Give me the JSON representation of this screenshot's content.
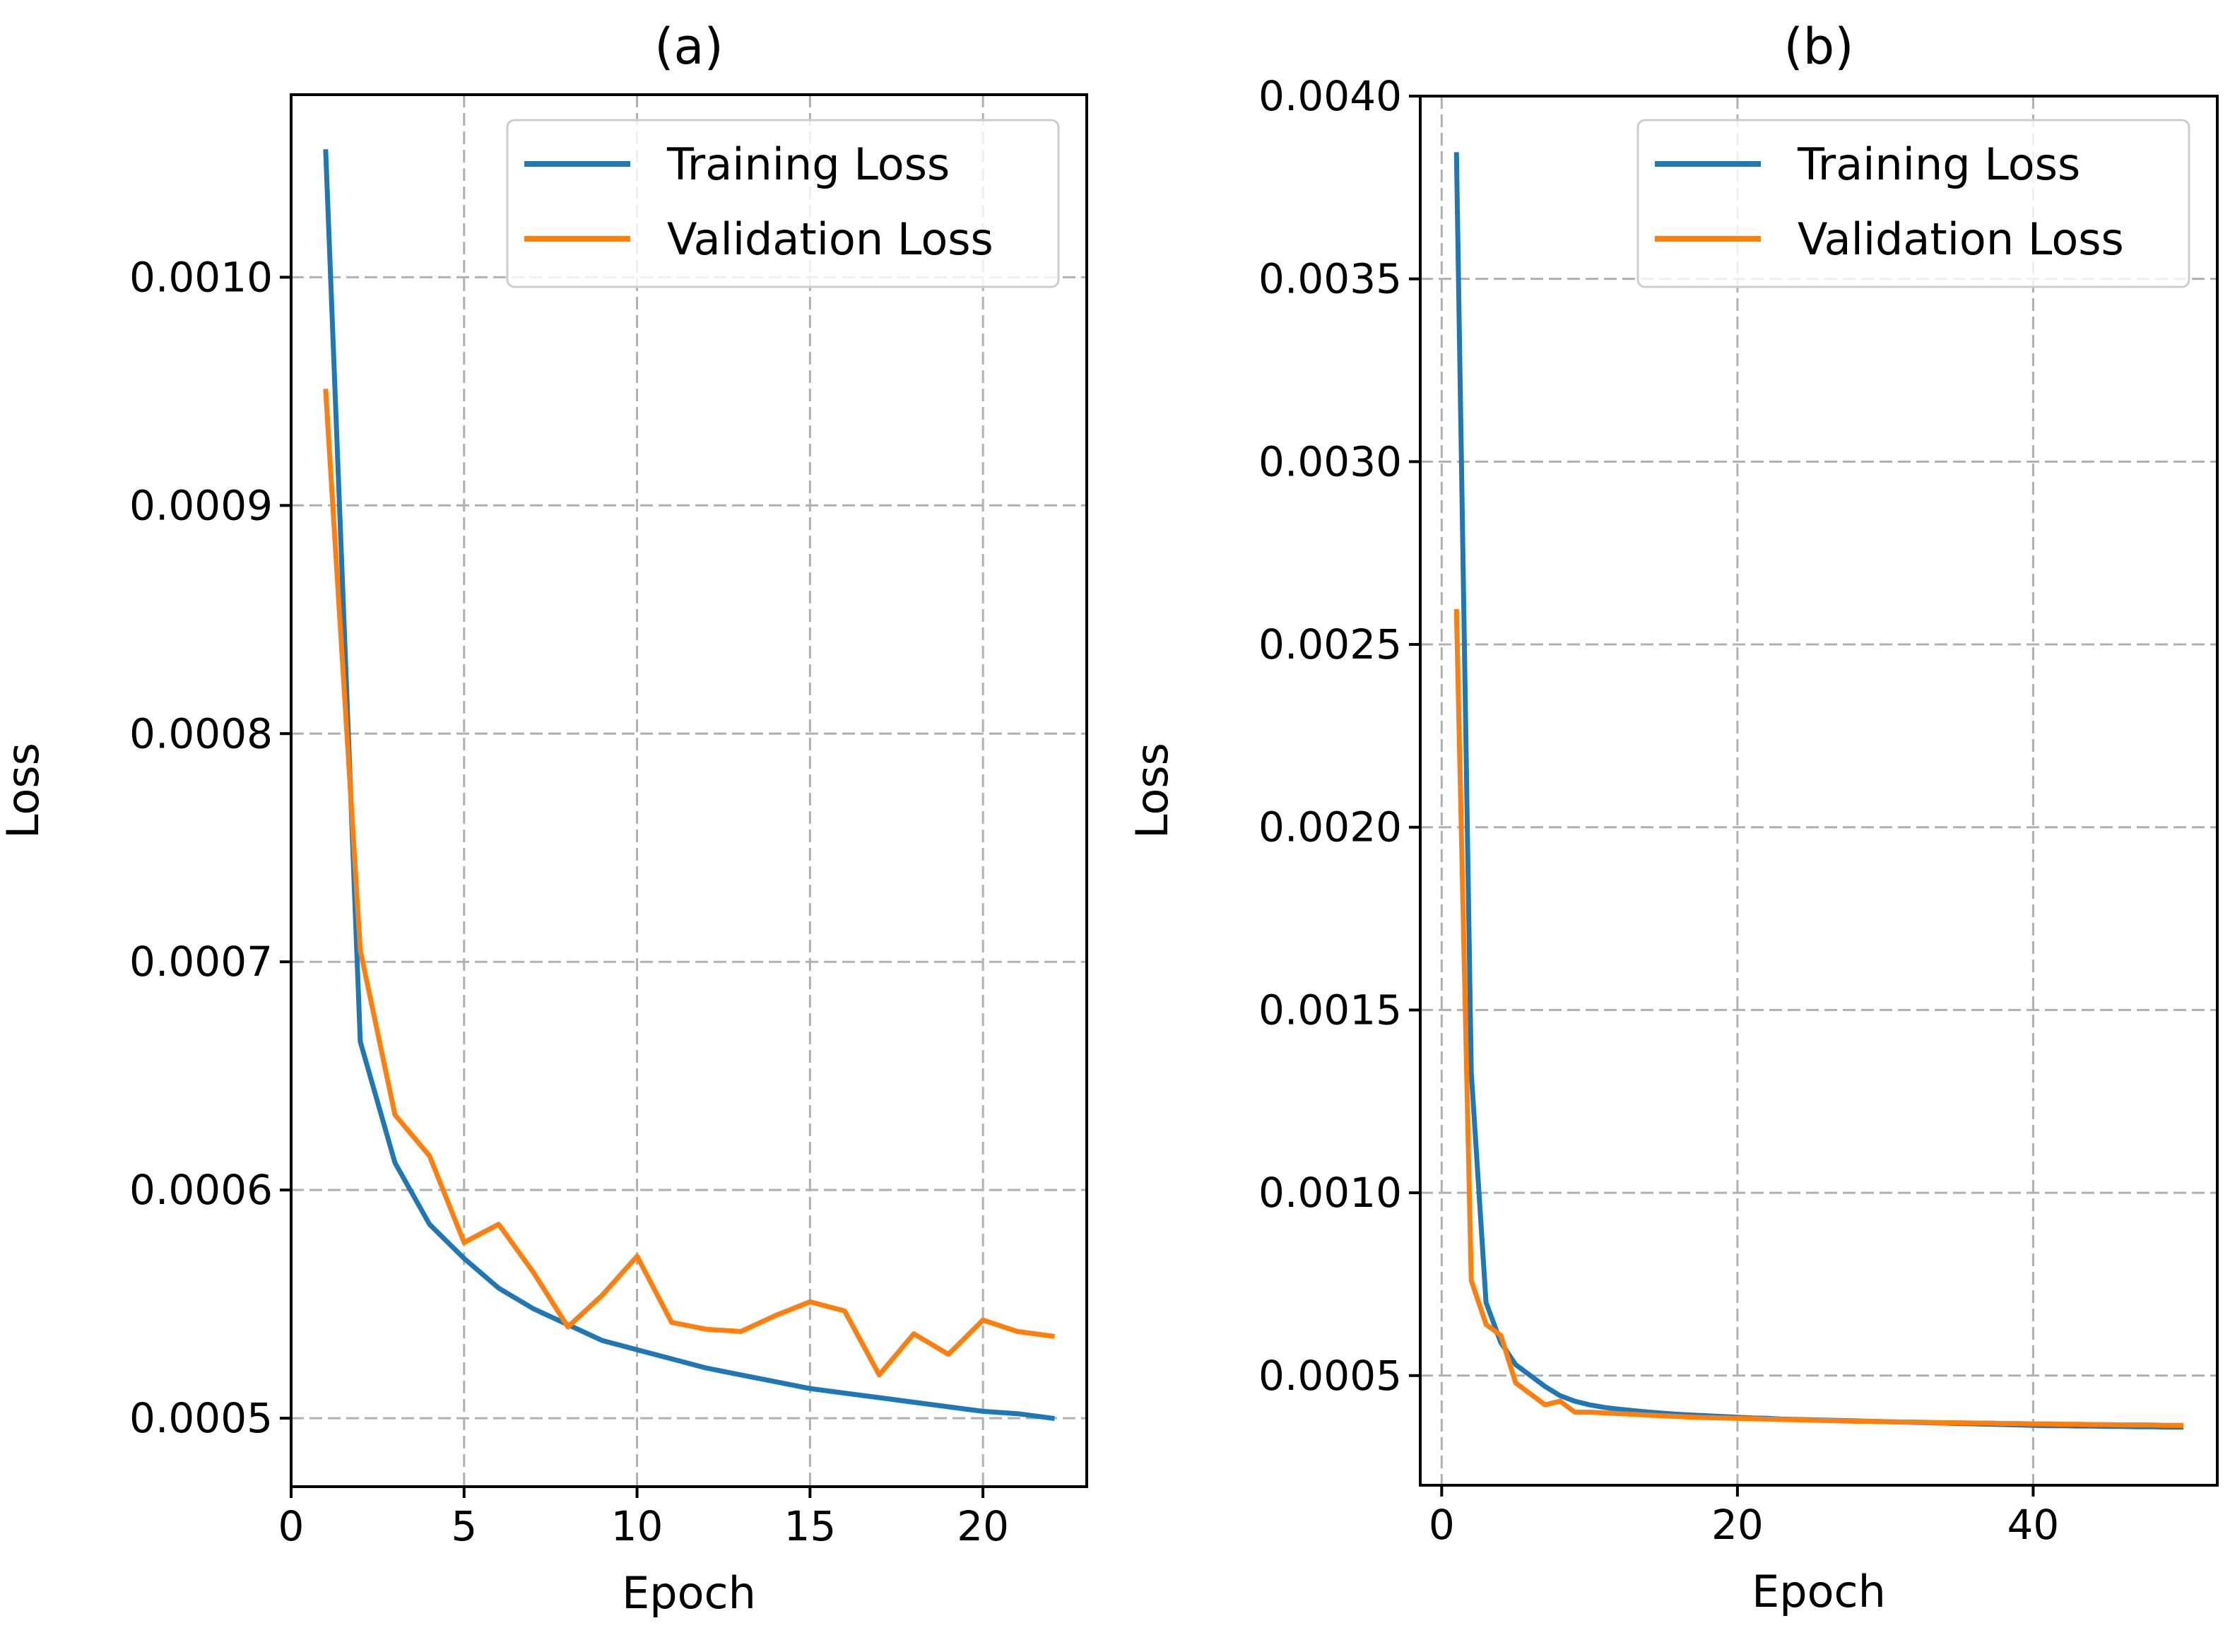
{
  "chart_data": [
    {
      "type": "line",
      "title": "(a)",
      "xlabel": "Epoch",
      "ylabel": "Loss",
      "xlim": [
        0,
        23
      ],
      "ylim": [
        0.00047,
        0.00108
      ],
      "xticks": [
        0,
        5,
        10,
        15,
        20
      ],
      "xtick_labels": [
        "0",
        "5",
        "10",
        "15",
        "20"
      ],
      "yticks": [
        0.0005,
        0.0006,
        0.0007,
        0.0008,
        0.0009,
        0.001
      ],
      "ytick_labels": [
        "0.0005",
        "0.0006",
        "0.0007",
        "0.0008",
        "0.0009",
        "0.0010"
      ],
      "grid": true,
      "legend_position": "top-right",
      "x": [
        1,
        2,
        3,
        4,
        5,
        6,
        7,
        8,
        9,
        10,
        11,
        12,
        13,
        14,
        15,
        16,
        17,
        18,
        19,
        20,
        21,
        22
      ],
      "series": [
        {
          "name": "Training Loss",
          "color": "#1f77b4",
          "values": [
            0.001055,
            0.000665,
            0.000612,
            0.000585,
            0.00057,
            0.000557,
            0.000548,
            0.000541,
            0.000534,
            0.00053,
            0.000526,
            0.000522,
            0.000519,
            0.000516,
            0.000513,
            0.000511,
            0.000509,
            0.000507,
            0.000505,
            0.000503,
            0.000502,
            0.0005
          ]
        },
        {
          "name": "Validation Loss",
          "color": "#ff7f0e",
          "values": [
            0.00095,
            0.000705,
            0.000633,
            0.000615,
            0.000577,
            0.000585,
            0.000564,
            0.00054,
            0.000554,
            0.000571,
            0.000542,
            0.000539,
            0.000538,
            0.000545,
            0.000551,
            0.000547,
            0.000519,
            0.000537,
            0.000528,
            0.000543,
            0.000538,
            0.000536
          ]
        }
      ]
    },
    {
      "type": "line",
      "title": "(b)",
      "xlabel": "Epoch",
      "ylabel": "Loss",
      "xlim": [
        -1.45,
        52.45
      ],
      "ylim": [
        0.0002,
        0.004
      ],
      "xticks": [
        0,
        20,
        40
      ],
      "xtick_labels": [
        "0",
        "20",
        "40"
      ],
      "yticks": [
        0.0005,
        0.001,
        0.0015,
        0.002,
        0.0025,
        0.003,
        0.0035,
        0.004
      ],
      "ytick_labels": [
        "0.0005",
        "0.0010",
        "0.0015",
        "0.0020",
        "0.0025",
        "0.0030",
        "0.0035",
        "0.0040"
      ],
      "grid": true,
      "legend_position": "top-right",
      "x": [
        1,
        2,
        3,
        4,
        5,
        6,
        7,
        8,
        9,
        10,
        11,
        12,
        13,
        14,
        15,
        16,
        17,
        18,
        19,
        20,
        21,
        22,
        23,
        24,
        25,
        26,
        27,
        28,
        29,
        30,
        31,
        32,
        33,
        34,
        35,
        36,
        37,
        38,
        39,
        40,
        41,
        42,
        43,
        44,
        45,
        46,
        47,
        48,
        49,
        50
      ],
      "series": [
        {
          "name": "Training Loss",
          "color": "#1f77b4",
          "values": [
            0.00384,
            0.00133,
            0.0007,
            0.00059,
            0.00053,
            0.0005,
            0.00047,
            0.000445,
            0.00043,
            0.00042,
            0.000413,
            0.000408,
            0.000404,
            0.0004,
            0.000397,
            0.000394,
            0.000392,
            0.00039,
            0.000388,
            0.000386,
            0.000384,
            0.000383,
            0.000381,
            0.00038,
            0.000379,
            0.000378,
            0.000377,
            0.000376,
            0.000375,
            0.000374,
            0.000373,
            0.000372,
            0.000371,
            0.00037,
            0.000369,
            0.000368,
            0.000367,
            0.000366,
            0.000365,
            0.000364,
            0.000363,
            0.000363,
            0.000362,
            0.000362,
            0.000361,
            0.000361,
            0.00036,
            0.00036,
            0.000359,
            0.000359
          ]
        },
        {
          "name": "Validation Loss",
          "color": "#ff7f0e",
          "values": [
            0.00259,
            0.00076,
            0.00064,
            0.00061,
            0.00048,
            0.00045,
            0.00042,
            0.00043,
            0.0004,
            0.0004,
            0.000398,
            0.000396,
            0.000394,
            0.000392,
            0.00039,
            0.000388,
            0.000386,
            0.000385,
            0.000384,
            0.000383,
            0.000382,
            0.000381,
            0.00038,
            0.000379,
            0.000378,
            0.000377,
            0.000376,
            0.000375,
            0.000375,
            0.000374,
            0.000373,
            0.000373,
            0.000372,
            0.000371,
            0.000371,
            0.00037,
            0.00037,
            0.000369,
            0.000369,
            0.000368,
            0.000368,
            0.000367,
            0.000367,
            0.000366,
            0.000366,
            0.000365,
            0.000365,
            0.000365,
            0.000364,
            0.000364
          ]
        }
      ]
    }
  ]
}
